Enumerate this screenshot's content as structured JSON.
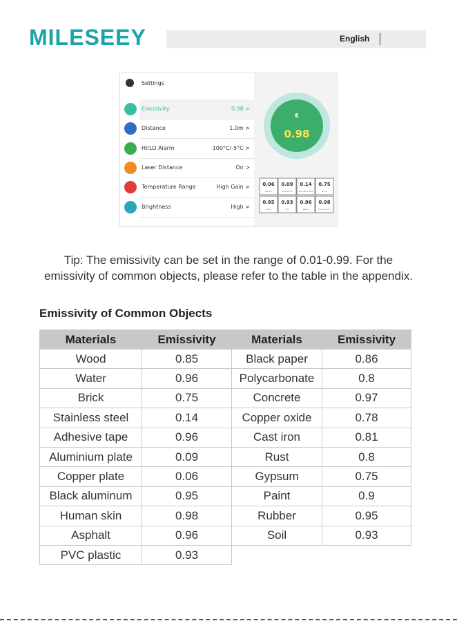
{
  "header": {
    "logo": "MILESEEY",
    "language": "English"
  },
  "screenshot": {
    "settings_title": "Settings",
    "menu": [
      {
        "label": "Emissivity",
        "value": "0.98 >"
      },
      {
        "label": "Distance",
        "value": "1.0m >"
      },
      {
        "label": "HI/LO Alarm",
        "value": "100°C/-5°C >"
      },
      {
        "label": "Laser Distance",
        "value": "On >"
      },
      {
        "label": "Temperature Range",
        "value": "High Gain >"
      },
      {
        "label": "Brightness",
        "value": "High >"
      }
    ],
    "symbol": "ε",
    "current": "0.98",
    "presets": [
      {
        "value": "0.06",
        "label": "Copper"
      },
      {
        "value": "0.09",
        "label": "Aluminium"
      },
      {
        "value": "0.14",
        "label": "Stainless steel"
      },
      {
        "value": "0.75",
        "label": "Brick"
      },
      {
        "value": "0.85",
        "label": "Wood"
      },
      {
        "value": "0.93",
        "label": "PVC"
      },
      {
        "value": "0.96",
        "label": "Water"
      },
      {
        "value": "0.98",
        "label": "Human skin"
      }
    ]
  },
  "tip": [
    "Tip: The emissivity can be set in the range of 0.01-0.99. For the",
    "emissivity of common objects, please refer to the table in the appendix."
  ],
  "table": {
    "title": "Emissivity of Common Objects",
    "header": [
      "Materials",
      "Emissivity",
      "Materials",
      "Emissivity"
    ],
    "rows": [
      [
        "Wood",
        "0.85",
        "Black paper",
        "0.86"
      ],
      [
        "Water",
        "0.96",
        "Polycarbonate",
        "0.8"
      ],
      [
        "Brick",
        "0.75",
        "Concrete",
        "0.97"
      ],
      [
        "Stainless steel",
        "0.14",
        "Copper oxide",
        "0.78"
      ],
      [
        "Adhesive tape",
        "0.96",
        "Cast iron",
        "0.81"
      ],
      [
        "Aluminium plate",
        "0.09",
        "Rust",
        "0.8"
      ],
      [
        "Copper plate",
        "0.06",
        "Gypsum",
        "0.75"
      ],
      [
        "Black aluminum",
        "0.95",
        "Paint",
        "0.9"
      ],
      [
        "Human skin",
        "0.98",
        "Rubber",
        "0.95"
      ],
      [
        "Asphalt",
        "0.96",
        "Soil",
        "0.93"
      ],
      [
        "PVC plastic",
        "0.93"
      ]
    ]
  }
}
